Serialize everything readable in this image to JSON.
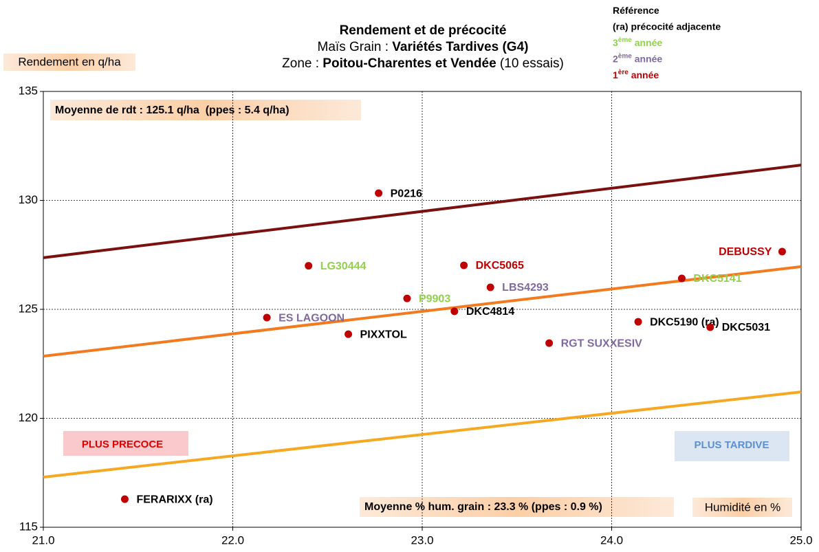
{
  "chart_data": {
    "type": "scatter",
    "title": [
      [
        {
          "text": "Rendement et de précocité",
          "bold": true
        }
      ],
      [
        {
          "text": "Maïs Grain : ",
          "bold": false
        },
        {
          "text": "Variétés Tardives (G4)",
          "bold": true
        }
      ],
      [
        {
          "text": "Zone : ",
          "bold": false
        },
        {
          "text": "Poitou-Charentes et Vendée",
          "bold": true
        },
        {
          "text": " (10 essais)",
          "bold": false
        }
      ]
    ],
    "y_label": "Rendement en q/ha",
    "x_label": "Humidité en %",
    "annotations": {
      "mean_yield": "Moyenne de rdt : 125.1 q/ha  (ppes : 5.4 q/ha)",
      "mean_humidity": "Moyenne % hum. grain : 23.3 % (ppes : 0.9 %)",
      "early": "PLUS PRECOCE",
      "late": "PLUS TARDIVE"
    },
    "legend": [
      {
        "parts": [
          "Référence"
        ],
        "color": "#000000"
      },
      {
        "parts": [
          "(ra) précocité adjacente"
        ],
        "color": "#000000"
      },
      {
        "parts": [
          "3",
          "ème",
          " année"
        ],
        "color": "#92d050"
      },
      {
        "parts": [
          "2",
          "ème",
          " année"
        ],
        "color": "#7f6a9f"
      },
      {
        "parts": [
          "1",
          "ère",
          " année"
        ],
        "color": "#c00000"
      }
    ],
    "point_color": "#c00000",
    "points": [
      {
        "name": "P0216",
        "x": 22.77,
        "y": 130.33,
        "color": "#000000"
      },
      {
        "name": "LG30444",
        "x": 22.4,
        "y": 127.0,
        "color": "#92d050"
      },
      {
        "name": "DKC5065",
        "x": 23.22,
        "y": 127.02,
        "color": "#c00000"
      },
      {
        "name": "DEBUSSY",
        "x": 24.9,
        "y": 127.65,
        "color": "#c00000"
      },
      {
        "name": "DKC5141",
        "x": 24.37,
        "y": 126.42,
        "color": "#92d050"
      },
      {
        "name": "LBS4293",
        "x": 23.36,
        "y": 126.01,
        "color": "#7f6a9f"
      },
      {
        "name": "P9903",
        "x": 22.92,
        "y": 125.5,
        "color": "#92d050"
      },
      {
        "name": "DKC4814",
        "x": 23.17,
        "y": 124.91,
        "color": "#000000"
      },
      {
        "name": "ES LAGOON",
        "x": 22.18,
        "y": 124.62,
        "color": "#7f6a9f"
      },
      {
        "name": "DKC5190 (ra)",
        "x": 24.14,
        "y": 124.43,
        "color": "#000000"
      },
      {
        "name": "DKC5031",
        "x": 24.52,
        "y": 124.18,
        "color": "#000000"
      },
      {
        "name": "PIXXTOL",
        "x": 22.61,
        "y": 123.86,
        "color": "#000000"
      },
      {
        "name": "RGT SUXXESIV",
        "x": 23.67,
        "y": 123.45,
        "color": "#7f6a9f"
      },
      {
        "name": "FERARIXX (ra)",
        "x": 21.43,
        "y": 116.29,
        "color": "#000000"
      }
    ],
    "lines": [
      {
        "color": "#7b1010",
        "x": [
          21,
          25
        ],
        "values": [
          127.37,
          131.62
        ]
      },
      {
        "color": "#f47a20",
        "x": [
          21,
          25
        ],
        "values": [
          122.85,
          126.96
        ]
      },
      {
        "color": "#f7a823",
        "x": [
          21,
          25
        ],
        "values": [
          117.3,
          121.21
        ]
      }
    ],
    "xlim": [
      21,
      25
    ],
    "ylim": [
      115,
      135
    ],
    "xticks": [
      {
        "value": 21,
        "label": "21.0"
      },
      {
        "value": 22,
        "label": "22.0"
      },
      {
        "value": 23,
        "label": "23.0"
      },
      {
        "value": 24,
        "label": "24.0"
      },
      {
        "value": 25,
        "label": "25.0"
      }
    ],
    "yticks": [
      115,
      120,
      125,
      130,
      135
    ],
    "grid": true
  }
}
